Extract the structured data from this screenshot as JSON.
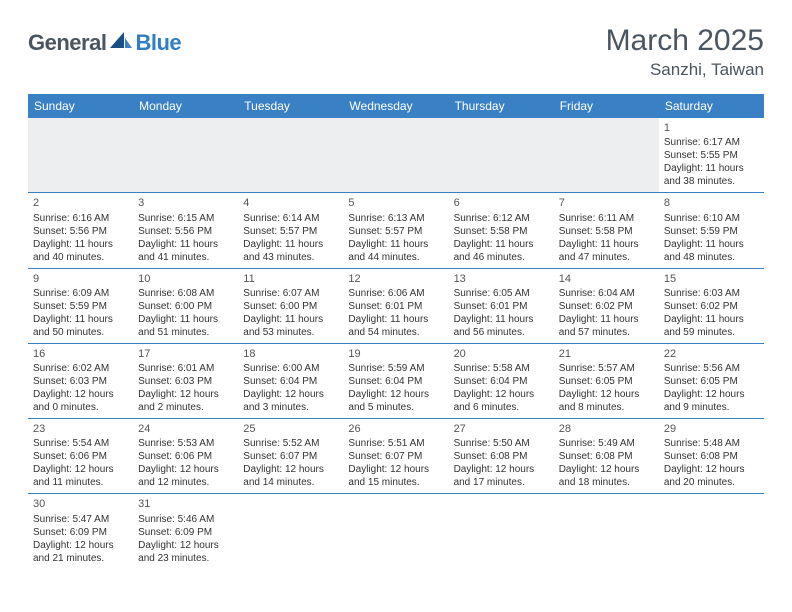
{
  "brand": {
    "part1": "General",
    "part2": "Blue"
  },
  "title": "March 2025",
  "location": "Sanzhi, Taiwan",
  "colors": {
    "header_bg": "#3a80c4",
    "header_text": "#ffffff",
    "row_border": "#3a80c4",
    "empty_bg": "#edeeef",
    "title_color": "#4a5560",
    "brand_dark": "#4a5560",
    "brand_blue": "#2f7fc2"
  },
  "weekdays": [
    "Sunday",
    "Monday",
    "Tuesday",
    "Wednesday",
    "Thursday",
    "Friday",
    "Saturday"
  ],
  "weeks": [
    [
      null,
      null,
      null,
      null,
      null,
      null,
      {
        "day": "1",
        "sunrise": "Sunrise: 6:17 AM",
        "sunset": "Sunset: 5:55 PM",
        "daylight1": "Daylight: 11 hours",
        "daylight2": "and 38 minutes."
      }
    ],
    [
      {
        "day": "2",
        "sunrise": "Sunrise: 6:16 AM",
        "sunset": "Sunset: 5:56 PM",
        "daylight1": "Daylight: 11 hours",
        "daylight2": "and 40 minutes."
      },
      {
        "day": "3",
        "sunrise": "Sunrise: 6:15 AM",
        "sunset": "Sunset: 5:56 PM",
        "daylight1": "Daylight: 11 hours",
        "daylight2": "and 41 minutes."
      },
      {
        "day": "4",
        "sunrise": "Sunrise: 6:14 AM",
        "sunset": "Sunset: 5:57 PM",
        "daylight1": "Daylight: 11 hours",
        "daylight2": "and 43 minutes."
      },
      {
        "day": "5",
        "sunrise": "Sunrise: 6:13 AM",
        "sunset": "Sunset: 5:57 PM",
        "daylight1": "Daylight: 11 hours",
        "daylight2": "and 44 minutes."
      },
      {
        "day": "6",
        "sunrise": "Sunrise: 6:12 AM",
        "sunset": "Sunset: 5:58 PM",
        "daylight1": "Daylight: 11 hours",
        "daylight2": "and 46 minutes."
      },
      {
        "day": "7",
        "sunrise": "Sunrise: 6:11 AM",
        "sunset": "Sunset: 5:58 PM",
        "daylight1": "Daylight: 11 hours",
        "daylight2": "and 47 minutes."
      },
      {
        "day": "8",
        "sunrise": "Sunrise: 6:10 AM",
        "sunset": "Sunset: 5:59 PM",
        "daylight1": "Daylight: 11 hours",
        "daylight2": "and 48 minutes."
      }
    ],
    [
      {
        "day": "9",
        "sunrise": "Sunrise: 6:09 AM",
        "sunset": "Sunset: 5:59 PM",
        "daylight1": "Daylight: 11 hours",
        "daylight2": "and 50 minutes."
      },
      {
        "day": "10",
        "sunrise": "Sunrise: 6:08 AM",
        "sunset": "Sunset: 6:00 PM",
        "daylight1": "Daylight: 11 hours",
        "daylight2": "and 51 minutes."
      },
      {
        "day": "11",
        "sunrise": "Sunrise: 6:07 AM",
        "sunset": "Sunset: 6:00 PM",
        "daylight1": "Daylight: 11 hours",
        "daylight2": "and 53 minutes."
      },
      {
        "day": "12",
        "sunrise": "Sunrise: 6:06 AM",
        "sunset": "Sunset: 6:01 PM",
        "daylight1": "Daylight: 11 hours",
        "daylight2": "and 54 minutes."
      },
      {
        "day": "13",
        "sunrise": "Sunrise: 6:05 AM",
        "sunset": "Sunset: 6:01 PM",
        "daylight1": "Daylight: 11 hours",
        "daylight2": "and 56 minutes."
      },
      {
        "day": "14",
        "sunrise": "Sunrise: 6:04 AM",
        "sunset": "Sunset: 6:02 PM",
        "daylight1": "Daylight: 11 hours",
        "daylight2": "and 57 minutes."
      },
      {
        "day": "15",
        "sunrise": "Sunrise: 6:03 AM",
        "sunset": "Sunset: 6:02 PM",
        "daylight1": "Daylight: 11 hours",
        "daylight2": "and 59 minutes."
      }
    ],
    [
      {
        "day": "16",
        "sunrise": "Sunrise: 6:02 AM",
        "sunset": "Sunset: 6:03 PM",
        "daylight1": "Daylight: 12 hours",
        "daylight2": "and 0 minutes."
      },
      {
        "day": "17",
        "sunrise": "Sunrise: 6:01 AM",
        "sunset": "Sunset: 6:03 PM",
        "daylight1": "Daylight: 12 hours",
        "daylight2": "and 2 minutes."
      },
      {
        "day": "18",
        "sunrise": "Sunrise: 6:00 AM",
        "sunset": "Sunset: 6:04 PM",
        "daylight1": "Daylight: 12 hours",
        "daylight2": "and 3 minutes."
      },
      {
        "day": "19",
        "sunrise": "Sunrise: 5:59 AM",
        "sunset": "Sunset: 6:04 PM",
        "daylight1": "Daylight: 12 hours",
        "daylight2": "and 5 minutes."
      },
      {
        "day": "20",
        "sunrise": "Sunrise: 5:58 AM",
        "sunset": "Sunset: 6:04 PM",
        "daylight1": "Daylight: 12 hours",
        "daylight2": "and 6 minutes."
      },
      {
        "day": "21",
        "sunrise": "Sunrise: 5:57 AM",
        "sunset": "Sunset: 6:05 PM",
        "daylight1": "Daylight: 12 hours",
        "daylight2": "and 8 minutes."
      },
      {
        "day": "22",
        "sunrise": "Sunrise: 5:56 AM",
        "sunset": "Sunset: 6:05 PM",
        "daylight1": "Daylight: 12 hours",
        "daylight2": "and 9 minutes."
      }
    ],
    [
      {
        "day": "23",
        "sunrise": "Sunrise: 5:54 AM",
        "sunset": "Sunset: 6:06 PM",
        "daylight1": "Daylight: 12 hours",
        "daylight2": "and 11 minutes."
      },
      {
        "day": "24",
        "sunrise": "Sunrise: 5:53 AM",
        "sunset": "Sunset: 6:06 PM",
        "daylight1": "Daylight: 12 hours",
        "daylight2": "and 12 minutes."
      },
      {
        "day": "25",
        "sunrise": "Sunrise: 5:52 AM",
        "sunset": "Sunset: 6:07 PM",
        "daylight1": "Daylight: 12 hours",
        "daylight2": "and 14 minutes."
      },
      {
        "day": "26",
        "sunrise": "Sunrise: 5:51 AM",
        "sunset": "Sunset: 6:07 PM",
        "daylight1": "Daylight: 12 hours",
        "daylight2": "and 15 minutes."
      },
      {
        "day": "27",
        "sunrise": "Sunrise: 5:50 AM",
        "sunset": "Sunset: 6:08 PM",
        "daylight1": "Daylight: 12 hours",
        "daylight2": "and 17 minutes."
      },
      {
        "day": "28",
        "sunrise": "Sunrise: 5:49 AM",
        "sunset": "Sunset: 6:08 PM",
        "daylight1": "Daylight: 12 hours",
        "daylight2": "and 18 minutes."
      },
      {
        "day": "29",
        "sunrise": "Sunrise: 5:48 AM",
        "sunset": "Sunset: 6:08 PM",
        "daylight1": "Daylight: 12 hours",
        "daylight2": "and 20 minutes."
      }
    ],
    [
      {
        "day": "30",
        "sunrise": "Sunrise: 5:47 AM",
        "sunset": "Sunset: 6:09 PM",
        "daylight1": "Daylight: 12 hours",
        "daylight2": "and 21 minutes."
      },
      {
        "day": "31",
        "sunrise": "Sunrise: 5:46 AM",
        "sunset": "Sunset: 6:09 PM",
        "daylight1": "Daylight: 12 hours",
        "daylight2": "and 23 minutes."
      },
      null,
      null,
      null,
      null,
      null
    ]
  ]
}
